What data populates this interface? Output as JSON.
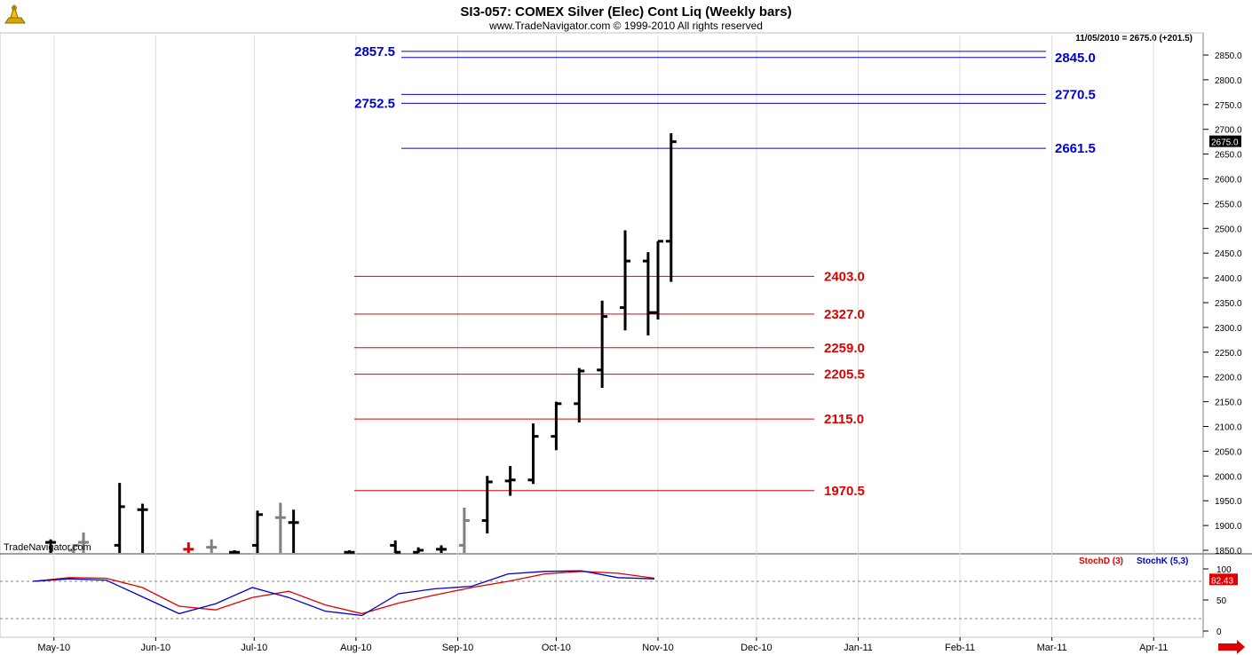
{
  "header": {
    "title": "SI3-057:  COMEX Silver (Elec) Cont Liq  (Weekly bars)",
    "subtitle": "www.TradeNavigator.com © 1999-2010 All rights reserved",
    "last_bar_info": "11/05/2010 = 2675.0 (+201.5)",
    "watermark": "TradeNavigator.com",
    "logo_icon": "telescope-logo-icon",
    "next_arrow_icon": "red-right-arrow-icon"
  },
  "colors": {
    "bar": "#000000",
    "bar_grey": "#808080",
    "bar_red": "#e00000",
    "blue_level": "#0000cc",
    "red_level": "#e00000",
    "stoch_d": "#e00000",
    "stoch_k": "#0000cc"
  },
  "chart_data": [
    {
      "type": "ohlc",
      "title": "SI3-057:  COMEX Silver (Elec) Cont Liq  (Weekly bars)",
      "ylim": [
        1840,
        2890
      ],
      "y_ticks": [
        "1850.0",
        "1900.0",
        "1950.0",
        "2000.0",
        "2050.0",
        "2100.0",
        "2150.0",
        "2200.0",
        "2250.0",
        "2300.0",
        "2350.0",
        "2400.0",
        "2450.0",
        "2500.0",
        "2550.0",
        "2600.0",
        "2650.0",
        "2700.0",
        "2750.0",
        "2800.0",
        "2850.0"
      ],
      "x_labels": [
        "May-10",
        "Jun-10",
        "Jul-10",
        "Aug-10",
        "Sep-10",
        "Oct-10",
        "Nov-10",
        "Dec-10",
        "Jan-11",
        "Feb-11",
        "Mar-11",
        "Apr-11"
      ],
      "last_price": "2675.0",
      "bars": [
        {
          "date": "2010-04-30",
          "high": 1872,
          "low": 1840,
          "open": 1866,
          "close": 1866,
          "color": "black"
        },
        {
          "date": "2010-05-07",
          "high": 1862,
          "low": 1840,
          "open": 1850,
          "close": 1860,
          "color": "grey"
        },
        {
          "date": "2010-05-10",
          "high": 1886,
          "low": 1840,
          "open": 1866,
          "close": 1866,
          "color": "grey"
        },
        {
          "date": "2010-05-21",
          "high": 1986,
          "low": 1840,
          "open": 1860,
          "close": 1938,
          "color": "black"
        },
        {
          "date": "2010-05-28",
          "high": 1944,
          "low": 1840,
          "open": 1932,
          "close": 1932,
          "color": "black"
        },
        {
          "date": "2010-06-11",
          "high": 1866,
          "low": 1840,
          "open": 1852,
          "close": 1852,
          "color": "red"
        },
        {
          "date": "2010-06-18",
          "high": 1872,
          "low": 1840,
          "open": 1856,
          "close": 1856,
          "color": "grey"
        },
        {
          "date": "2010-06-25",
          "high": 1850,
          "low": 1840,
          "open": 1846,
          "close": 1846,
          "color": "black"
        },
        {
          "date": "2010-07-02",
          "high": 1930,
          "low": 1840,
          "open": 1860,
          "close": 1922,
          "color": "black"
        },
        {
          "date": "2010-07-09",
          "high": 1946,
          "low": 1840,
          "open": 1916,
          "close": 1916,
          "color": "grey"
        },
        {
          "date": "2010-07-13",
          "high": 1932,
          "low": 1840,
          "open": 1906,
          "close": 1906,
          "color": "black"
        },
        {
          "date": "2010-07-30",
          "high": 1850,
          "low": 1840,
          "open": 1846,
          "close": 1846,
          "color": "black"
        },
        {
          "date": "2010-08-13",
          "high": 1870,
          "low": 1840,
          "open": 1860,
          "close": 1846,
          "color": "black"
        },
        {
          "date": "2010-08-20",
          "high": 1856,
          "low": 1840,
          "open": 1846,
          "close": 1850,
          "color": "black"
        },
        {
          "date": "2010-08-27",
          "high": 1860,
          "low": 1840,
          "open": 1852,
          "close": 1852,
          "color": "black"
        },
        {
          "date": "2010-09-03",
          "high": 1936,
          "low": 1840,
          "open": 1860,
          "close": 1910,
          "color": "grey"
        },
        {
          "date": "2010-09-10",
          "high": 2000,
          "low": 1884,
          "open": 1910,
          "close": 1988,
          "color": "black"
        },
        {
          "date": "2010-09-17",
          "high": 2020,
          "low": 1960,
          "open": 1990,
          "close": 1992,
          "color": "black"
        },
        {
          "date": "2010-09-24",
          "high": 2106,
          "low": 1984,
          "open": 1992,
          "close": 2080,
          "color": "black"
        },
        {
          "date": "2010-10-01",
          "high": 2150,
          "low": 2052,
          "open": 2080,
          "close": 2146,
          "color": "black"
        },
        {
          "date": "2010-10-08",
          "high": 2218,
          "low": 2108,
          "open": 2146,
          "close": 2212,
          "color": "black"
        },
        {
          "date": "2010-10-15",
          "high": 2354,
          "low": 2178,
          "open": 2214,
          "close": 2322,
          "color": "black"
        },
        {
          "date": "2010-10-22",
          "high": 2496,
          "low": 2294,
          "open": 2340,
          "close": 2434,
          "color": "black"
        },
        {
          "date": "2010-10-29",
          "high": 2452,
          "low": 2284,
          "open": 2434,
          "close": 2330,
          "color": "black"
        },
        {
          "date": "2010-11-01",
          "high": 2474,
          "low": 2316,
          "open": 2330,
          "close": 2474,
          "color": "black"
        },
        {
          "date": "2010-11-05",
          "high": 2692,
          "low": 2392,
          "open": 2474,
          "close": 2675,
          "color": "black"
        }
      ],
      "levels": [
        {
          "value": 2857.5,
          "label": "2857.5",
          "color": "blue"
        },
        {
          "value": 2845.0,
          "label": "2845.0",
          "color": "blue"
        },
        {
          "value": 2770.5,
          "label": "2770.5",
          "color": "blue"
        },
        {
          "value": 2752.5,
          "label": "2752.5",
          "color": "blue"
        },
        {
          "value": 2661.5,
          "label": "2661.5",
          "color": "blue"
        },
        {
          "value": 2403.0,
          "label": "2403.0",
          "color": "red"
        },
        {
          "value": 2327.0,
          "label": "2327.0",
          "color": "red"
        },
        {
          "value": 2259.0,
          "label": "2259.0",
          "color": "red"
        },
        {
          "value": 2205.5,
          "label": "2205.5",
          "color": "red"
        },
        {
          "value": 2115.0,
          "label": "2115.0",
          "color": "red"
        },
        {
          "value": 1970.5,
          "label": "1970.5",
          "color": "red"
        }
      ]
    },
    {
      "type": "line",
      "title": "",
      "ylim": [
        0,
        100
      ],
      "y_ticks": [
        "0",
        "50",
        "100"
      ],
      "reference_lines": [
        20,
        80
      ],
      "last_value": "82.43",
      "series": [
        {
          "name": "StochD (3)",
          "color": "red",
          "values": [
            80,
            86,
            85,
            70,
            40,
            34,
            54,
            64,
            42,
            28,
            45,
            58,
            70,
            80,
            92,
            96,
            93,
            85
          ]
        },
        {
          "name": "StochK (5,3)",
          "color": "blue",
          "values": [
            80,
            84,
            82,
            55,
            28,
            44,
            70,
            54,
            32,
            25,
            60,
            68,
            72,
            92,
            96,
            97,
            86,
            84
          ]
        }
      ]
    }
  ]
}
